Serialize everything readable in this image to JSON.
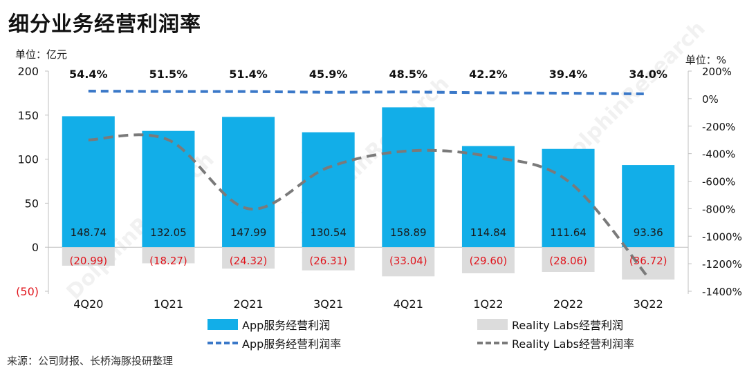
{
  "title": "细分业务经营利润率",
  "unit_left": "单位：亿元",
  "unit_right": "单位：%",
  "source": "来源：公司财报、长桥海豚投研整理",
  "watermark": "DolphinResearch",
  "colors": {
    "app_bar": "#12aee8",
    "rl_bar": "#dcdcdc",
    "app_line": "#3a78c8",
    "rl_line": "#7a7a7a",
    "neg_label": "#e0141c"
  },
  "legend": {
    "app_profit": "App服务经营利润",
    "rl_profit": "Reality Labs经营利润",
    "app_margin": "App服务经营利润率",
    "rl_margin": "Reality Labs经营利润率"
  },
  "chart_data": {
    "type": "bar",
    "categories": [
      "4Q20",
      "1Q21",
      "2Q21",
      "3Q21",
      "4Q21",
      "1Q22",
      "2Q22",
      "3Q22"
    ],
    "series": [
      {
        "name": "App服务经营利润",
        "axis": "left",
        "values": [
          148.74,
          132.05,
          147.99,
          130.54,
          158.89,
          114.84,
          111.64,
          93.36
        ],
        "labels": [
          "148.74",
          "132.05",
          "147.99",
          "130.54",
          "158.89",
          "114.84",
          "111.64",
          "93.36"
        ]
      },
      {
        "name": "Reality Labs经营利润",
        "axis": "left",
        "values": [
          -20.99,
          -18.27,
          -24.32,
          -26.31,
          -33.04,
          -29.6,
          -28.06,
          -36.72
        ],
        "labels": [
          "(20.99)",
          "(18.27)",
          "(24.32)",
          "(26.31)",
          "(33.04)",
          "(29.60)",
          "(28.06)",
          "(36.72)"
        ]
      },
      {
        "name": "App服务经营利润率",
        "axis": "right",
        "type": "line",
        "style": "dashed",
        "values": [
          54.4,
          51.5,
          51.4,
          45.9,
          48.5,
          42.2,
          39.4,
          34.0
        ],
        "labels": [
          "54.4%",
          "51.5%",
          "51.4%",
          "45.9%",
          "48.5%",
          "42.2%",
          "39.4%",
          "34.0%"
        ]
      },
      {
        "name": "Reality Labs经营利润率",
        "axis": "right",
        "type": "line",
        "style": "dashed",
        "values": [
          -300,
          -300,
          -800,
          -500,
          -380,
          -420,
          -600,
          -1300
        ]
      }
    ],
    "left_axis": {
      "min": -50,
      "max": 200,
      "ticks": [
        200,
        150,
        100,
        50,
        0,
        -50
      ],
      "tick_labels": [
        "200",
        "150",
        "100",
        "50",
        "0",
        "(50)"
      ]
    },
    "right_axis": {
      "min": -1400,
      "max": 200,
      "ticks": [
        200,
        0,
        -200,
        -400,
        -600,
        -800,
        -1000,
        -1200,
        -1400
      ],
      "tick_labels": [
        "200%",
        "0%",
        "-200%",
        "-400%",
        "-600%",
        "-800%",
        "-1000%",
        "-1200%",
        "-1400%"
      ]
    }
  }
}
